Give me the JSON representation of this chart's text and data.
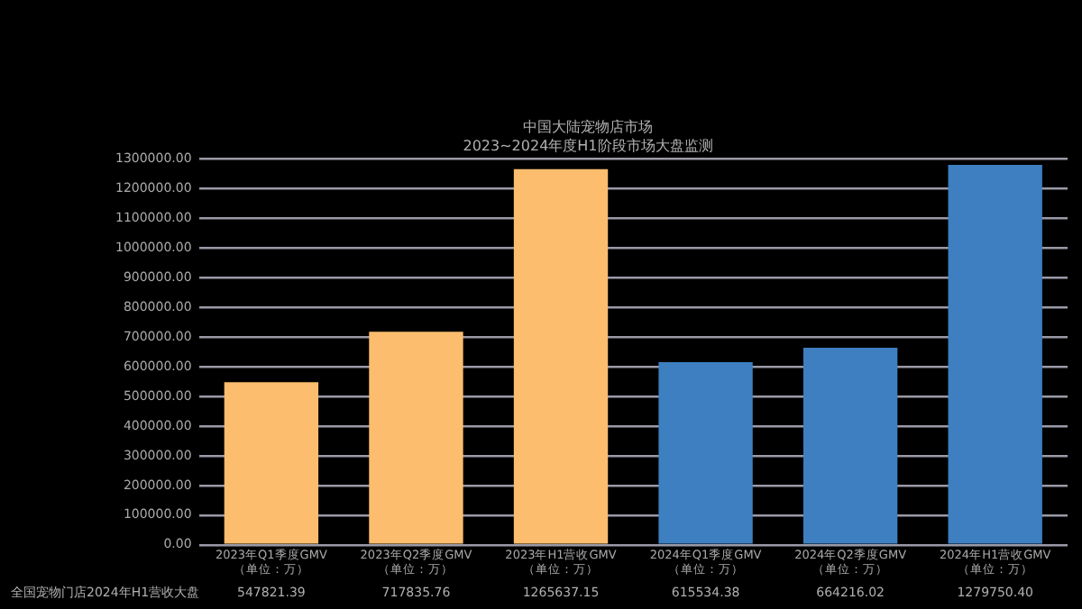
{
  "chart_data": {
    "type": "bar",
    "title": "中国大陆宠物店市场",
    "subtitle": "2023~2024年度H1阶段市场大盘监测",
    "categories": [
      "2023年Q1季度GMV\n（单位：万）",
      "2023年Q2季度GMV\n（单位：万）",
      "2023年H1营收GMV\n（单位：万）",
      "2024年Q1季度GMV\n（单位：万）",
      "2024年Q2季度GMV\n（单位：万）",
      "2024年H1营收GMV\n（单位：万）"
    ],
    "values": [
      547821.39,
      717835.76,
      1265637.15,
      615534.38,
      664216.02,
      1279750.4
    ],
    "value_labels": [
      "547821.39",
      "717835.76",
      "1265637.15",
      "615534.38",
      "664216.02",
      "1279750.40"
    ],
    "colors": [
      "#fcbd6e",
      "#fcbd6e",
      "#fcbd6e",
      "#3d7fc0",
      "#3d7fc0",
      "#3d7fc0"
    ],
    "ylim": [
      0,
      1300000
    ],
    "yticks": [
      {
        "value": 0,
        "label": "0.00"
      },
      {
        "value": 100000,
        "label": "100000.00"
      },
      {
        "value": 200000,
        "label": "200000.00"
      },
      {
        "value": 300000,
        "label": "300000.00"
      },
      {
        "value": 400000,
        "label": "400000.00"
      },
      {
        "value": 500000,
        "label": "500000.00"
      },
      {
        "value": 600000,
        "label": "600000.00"
      },
      {
        "value": 700000,
        "label": "700000.00"
      },
      {
        "value": 800000,
        "label": "800000.00"
      },
      {
        "value": 900000,
        "label": "900000.00"
      },
      {
        "value": 1000000,
        "label": "1000000.00"
      },
      {
        "value": 1100000,
        "label": "1100000.00"
      },
      {
        "value": 1200000,
        "label": "1200000.00"
      },
      {
        "value": 1300000,
        "label": "1300000.00"
      }
    ],
    "grid": "y",
    "legend": false,
    "annotations": [
      "全国宠物门店2024年H1营收大盘"
    ]
  }
}
